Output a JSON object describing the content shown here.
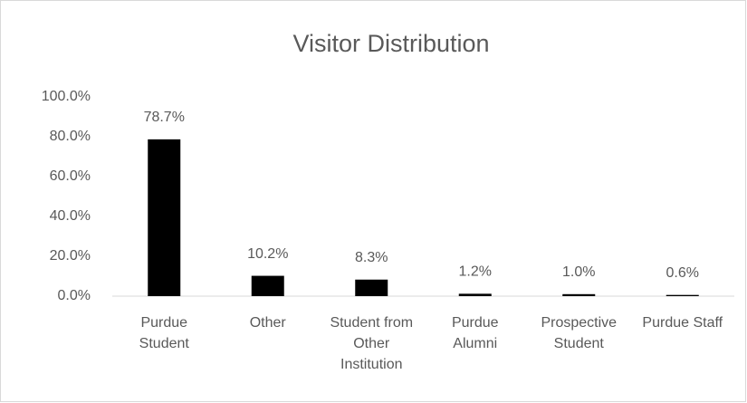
{
  "chart_data": {
    "type": "bar",
    "title": "Visitor Distribution",
    "categories": [
      "Purdue Student",
      "Other",
      "Student from Other Institution",
      "Purdue Alumni",
      "Prospective Student",
      "Purdue Staff"
    ],
    "values": [
      78.7,
      10.2,
      8.3,
      1.2,
      1.0,
      0.6
    ],
    "value_labels": [
      "78.7%",
      "10.2%",
      "8.3%",
      "1.2%",
      "1.0%",
      "0.6%"
    ],
    "color": "#000000",
    "ylim": [
      0,
      100
    ],
    "yticks": [
      {
        "value": 0,
        "label": "0.0%"
      },
      {
        "value": 20,
        "label": "20.0%"
      },
      {
        "value": 40,
        "label": "40.0%"
      },
      {
        "value": 60,
        "label": "60.0%"
      },
      {
        "value": 80,
        "label": "80.0%"
      },
      {
        "value": 100,
        "label": "100.0%"
      }
    ],
    "grid": false
  }
}
